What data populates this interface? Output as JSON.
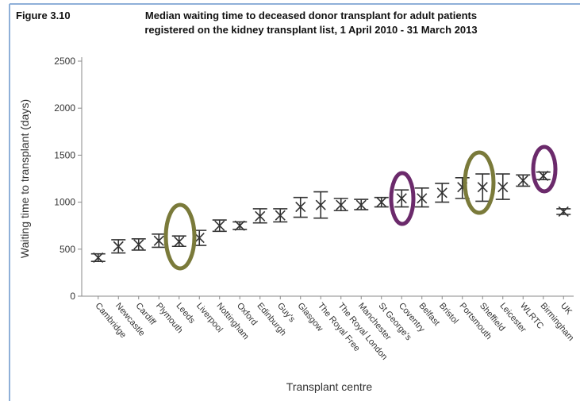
{
  "chart_data": {
    "type": "errorbar",
    "figure_label": "Figure 3.10",
    "title": [
      "Median waiting time to deceased donor transplant for adult patients",
      "registered on the kidney transplant list, 1 April 2010 - 31 March 2013"
    ],
    "x_label": "Transplant centre",
    "y_label": "Waiting time to transplant (days)",
    "categories": [
      "Cambridge",
      "Newcastle",
      "Cardiff",
      "Plymouth",
      "Leeds",
      "Liverpool",
      "Nottingham",
      "Oxford",
      "Edinburgh",
      "Guy's",
      "Glasgow",
      "The Royal Free",
      "The Royal London",
      "Manchester",
      "St George's",
      "Coventry",
      "Belfast",
      "Bristol",
      "Portsmouth",
      "Sheffield",
      "Leicester",
      "WLRTC",
      "Birmingham",
      "UK"
    ],
    "values": [
      410,
      530,
      550,
      590,
      580,
      620,
      750,
      750,
      850,
      860,
      950,
      970,
      970,
      970,
      1000,
      1040,
      1040,
      1100,
      1160,
      1160,
      1160,
      1230,
      1280,
      900
    ],
    "lower": [
      370,
      460,
      490,
      520,
      530,
      540,
      690,
      710,
      780,
      790,
      840,
      830,
      910,
      920,
      950,
      950,
      950,
      1000,
      1040,
      1010,
      1030,
      1170,
      1240,
      870
    ],
    "upper": [
      450,
      600,
      610,
      660,
      640,
      700,
      810,
      790,
      930,
      930,
      1050,
      1110,
      1040,
      1030,
      1050,
      1130,
      1150,
      1200,
      1260,
      1300,
      1300,
      1290,
      1320,
      930
    ],
    "color": "#333333",
    "ylim": [
      0,
      2500
    ],
    "yticks": [
      0,
      500,
      1000,
      1500,
      2000,
      2500
    ],
    "grid": false
  }
}
